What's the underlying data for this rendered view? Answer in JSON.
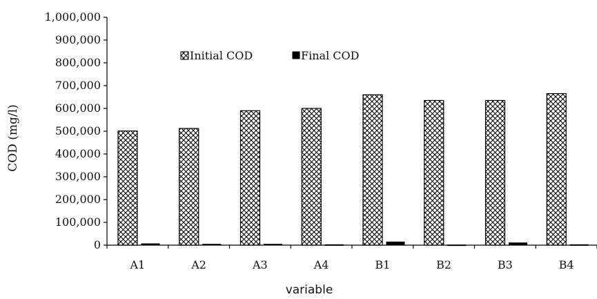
{
  "chart_data": {
    "type": "bar",
    "categories": [
      "A1",
      "A2",
      "A3",
      "A4",
      "B1",
      "B2",
      "B3",
      "B4"
    ],
    "series": [
      {
        "name": "Initial COD",
        "values": [
          501000,
          512000,
          590000,
          600000,
          660000,
          635000,
          635000,
          665000
        ]
      },
      {
        "name": "Final COD",
        "values": [
          6000,
          4000,
          4000,
          2000,
          14000,
          1000,
          10000,
          2000
        ]
      }
    ],
    "title": "",
    "xlabel": "variable",
    "ylabel": "COD (mg/l)",
    "ylim": [
      0,
      1000000
    ],
    "yticks": [
      0,
      100000,
      200000,
      300000,
      400000,
      500000,
      600000,
      700000,
      800000,
      900000,
      1000000
    ],
    "ytick_labels": [
      "0",
      "100,000",
      "200,000",
      "300,000",
      "400,000",
      "500,000",
      "600,000",
      "700,000",
      "800,000",
      "900,000",
      "1,000,000"
    ],
    "grid": false,
    "legend_position": "top-center",
    "colors": {
      "initial_pattern": "#000000",
      "final_fill": "#000000",
      "axis": "#000000"
    }
  }
}
